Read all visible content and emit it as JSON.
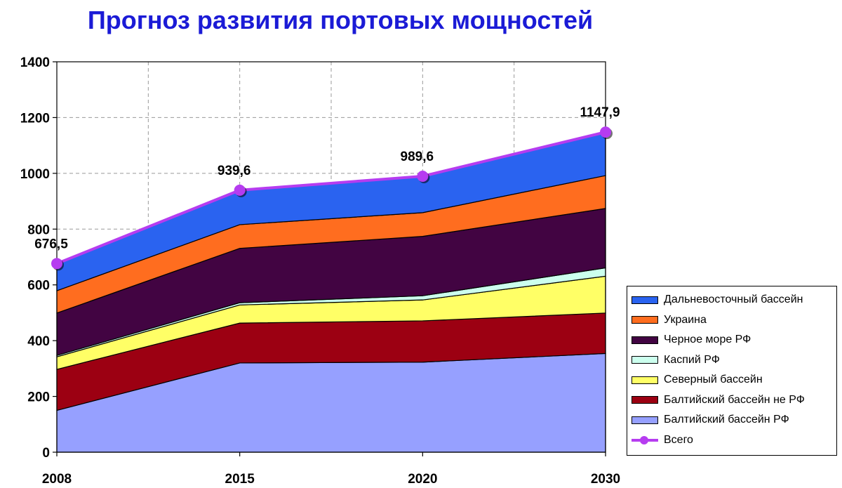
{
  "chart_data": {
    "type": "area",
    "title": "Прогноз развития портовых мощностей",
    "stacked": true,
    "x": [
      "2008",
      "2015",
      "2020",
      "2030"
    ],
    "ylim": [
      0,
      1400
    ],
    "yticks": [
      "0",
      "200",
      "400",
      "600",
      "800",
      "1000",
      "1200",
      "1400"
    ],
    "grid": true,
    "legend_position": "right",
    "series": [
      {
        "name": "Балтийский бассейн  РФ",
        "values": [
          150,
          320,
          323,
          354
        ],
        "color": "#96a0ff"
      },
      {
        "name": "Балтийский бассейн не РФ",
        "values": [
          147,
          143,
          148,
          145
        ],
        "color": "#9c0012"
      },
      {
        "name": "Северный бассейн",
        "values": [
          45,
          65,
          75,
          132
        ],
        "color": "#ffff66"
      },
      {
        "name": "Каспий РФ",
        "values": [
          5,
          8,
          15,
          30
        ],
        "color": "#ccffee"
      },
      {
        "name": "Черное море РФ",
        "values": [
          152,
          195,
          213,
          213
        ],
        "color": "#420442"
      },
      {
        "name": "Украина",
        "values": [
          80,
          85,
          85,
          118
        ],
        "color": "#ff6d1f"
      },
      {
        "name": "Дальневосточный бассейн",
        "values": [
          97,
          124,
          131,
          156
        ],
        "color": "#2a63f0"
      }
    ],
    "total": {
      "name": "Всего",
      "values": [
        676.5,
        939.6,
        989.6,
        1147.9
      ],
      "labels": [
        "676,5",
        "939,6",
        "989,6",
        "1147,9"
      ],
      "color": "#b63cf0"
    },
    "legend_order": [
      "Дальневосточный бассейн",
      "Украина",
      "Черное море РФ",
      "Каспий РФ",
      "Северный бассейн",
      "Балтийский бассейн не РФ",
      "Балтийский бассейн  РФ",
      "Всего"
    ]
  }
}
